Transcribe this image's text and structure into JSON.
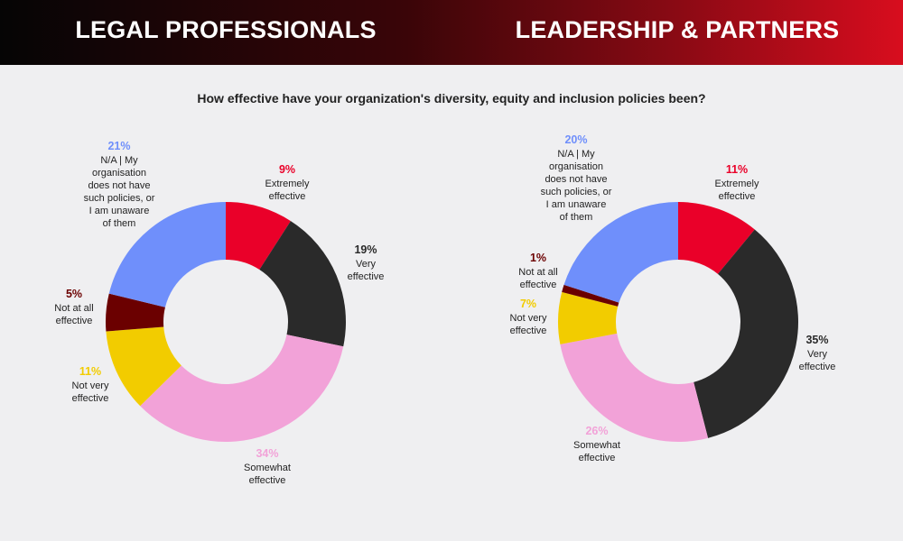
{
  "header": {
    "left_title": "LEGAL PROFESSIONALS",
    "right_title": "LEADERSHIP & PARTNERS"
  },
  "question": "How effective have your organization's diversity, equity and inclusion policies been?",
  "colors": {
    "extremely": "#ea0029",
    "very": "#2a2a2a",
    "somewhat": "#f2a2d8",
    "not_very": "#f2cc00",
    "not_at_all": "#6b0000",
    "na": "#6f8ffb"
  },
  "chart_data": [
    {
      "type": "pie",
      "donut": true,
      "title": "LEGAL PROFESSIONALS",
      "slices": [
        {
          "key": "extremely",
          "pct_label": "9%",
          "value": 9,
          "label_lines": [
            "Extremely",
            "effective"
          ]
        },
        {
          "key": "very",
          "pct_label": "19%",
          "value": 19,
          "label_lines": [
            "Very",
            "effective"
          ]
        },
        {
          "key": "somewhat",
          "pct_label": "34%",
          "value": 34,
          "label_lines": [
            "Somewhat",
            "effective"
          ]
        },
        {
          "key": "not_very",
          "pct_label": "11%",
          "value": 11,
          "label_lines": [
            "Not very",
            "effective"
          ]
        },
        {
          "key": "not_at_all",
          "pct_label": "5%",
          "value": 5,
          "label_lines": [
            "Not at all",
            "effective"
          ]
        },
        {
          "key": "na",
          "pct_label": "21%",
          "value": 21,
          "label_lines": [
            "N/A | My",
            "organisation",
            "does not have",
            "such policies, or",
            "I am unaware",
            "of them"
          ]
        }
      ]
    },
    {
      "type": "pie",
      "donut": true,
      "title": "LEADERSHIP & PARTNERS",
      "slices": [
        {
          "key": "extremely",
          "pct_label": "11%",
          "value": 11,
          "label_lines": [
            "Extremely",
            "effective"
          ]
        },
        {
          "key": "very",
          "pct_label": "35%",
          "value": 35,
          "label_lines": [
            "Very",
            "effective"
          ]
        },
        {
          "key": "somewhat",
          "pct_label": "26%",
          "value": 26,
          "label_lines": [
            "Somewhat",
            "effective"
          ]
        },
        {
          "key": "not_very",
          "pct_label": "7%",
          "value": 7,
          "label_lines": [
            "Not very",
            "effective"
          ]
        },
        {
          "key": "not_at_all",
          "pct_label": "1%",
          "value": 1,
          "label_lines": [
            "Not at all",
            "effective"
          ]
        },
        {
          "key": "na",
          "pct_label": "20%",
          "value": 20,
          "label_lines": [
            "N/A | My",
            "organisation",
            "does not have",
            "such policies, or",
            "I am unaware",
            "of them"
          ]
        }
      ]
    }
  ]
}
